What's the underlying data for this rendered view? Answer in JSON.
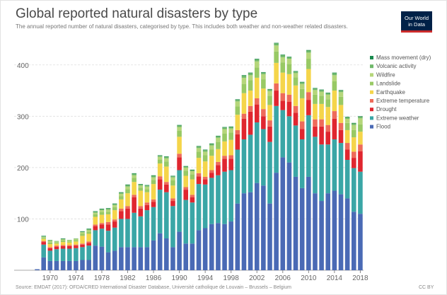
{
  "header": {
    "title": "Global reported natural disasters by type",
    "subtitle": "The annual reported number of natural disasters, categorised by type. This includes both weather and non-weather related disasters.",
    "logo_line1": "Our World",
    "logo_line2": "in Data"
  },
  "footer": {
    "source": "Source: EMDAT (2017): OFDA/CRED International Disaster Database, Université catholique de Louvain – Brussels – Belgium",
    "license": "CC BY"
  },
  "colors": {
    "Flood": "#4a6ab5",
    "Extreme weather": "#3aa6a6",
    "Drought": "#e0262f",
    "Extreme temperature": "#ee6b5a",
    "Earthquake": "#f5d54a",
    "Landslide": "#98c964",
    "Wildfire": "#b5d67a",
    "Volcanic activity": "#6fb86a",
    "Mass movement (dry)": "#1a8a4e"
  },
  "chart_data": {
    "type": "bar",
    "stacked": true,
    "title": "Global reported natural disasters by type",
    "xlabel": "",
    "ylabel": "",
    "ylim": [
      0,
      430
    ],
    "yticks": [
      100,
      200,
      300,
      400
    ],
    "xticks": [
      1970,
      1974,
      1978,
      1982,
      1986,
      1990,
      1994,
      1998,
      2002,
      2006,
      2010,
      2014,
      2018
    ],
    "grid": true,
    "legend_position": "right",
    "categories": [
      1968,
      1969,
      1970,
      1971,
      1972,
      1973,
      1974,
      1975,
      1976,
      1977,
      1978,
      1979,
      1980,
      1981,
      1982,
      1983,
      1984,
      1985,
      1986,
      1987,
      1988,
      1989,
      1990,
      1991,
      1992,
      1993,
      1994,
      1995,
      1996,
      1997,
      1998,
      1999,
      2000,
      2001,
      2002,
      2003,
      2004,
      2005,
      2006,
      2007,
      2008,
      2009,
      2010,
      2011,
      2012,
      2013,
      2014,
      2015,
      2016,
      2017,
      2018
    ],
    "legend": [
      "Mass movement (dry)",
      "Volcanic activity",
      "Wildfire",
      "Landslide",
      "Earthquake",
      "Extreme temperature",
      "Drought",
      "Extreme weather",
      "Flood"
    ],
    "series": [
      {
        "name": "Flood",
        "values": [
          2,
          25,
          18,
          18,
          18,
          18,
          18,
          20,
          20,
          48,
          46,
          35,
          38,
          45,
          45,
          45,
          45,
          45,
          58,
          72,
          62,
          45,
          75,
          52,
          52,
          78,
          82,
          90,
          92,
          90,
          95,
          130,
          150,
          152,
          170,
          165,
          130,
          190,
          220,
          210,
          182,
          160,
          182,
          150,
          135,
          150,
          155,
          148,
          140,
          114,
          110
        ]
      },
      {
        "name": "Extreme weather",
        "values": [
          0,
          25,
          20,
          23,
          24,
          24,
          25,
          25,
          28,
          30,
          35,
          42,
          45,
          55,
          55,
          67,
          60,
          72,
          65,
          85,
          90,
          80,
          120,
          85,
          80,
          90,
          85,
          90,
          93,
          102,
          100,
          105,
          105,
          112,
          118,
          110,
          120,
          130,
          92,
          90,
          100,
          95,
          120,
          110,
          110,
          95,
          100,
          100,
          75,
          85,
          82
        ]
      },
      {
        "name": "Drought",
        "values": [
          0,
          5,
          5,
          5,
          5,
          5,
          5,
          5,
          5,
          8,
          8,
          12,
          12,
          15,
          20,
          30,
          15,
          10,
          10,
          20,
          15,
          10,
          25,
          20,
          10,
          15,
          10,
          10,
          20,
          25,
          22,
          30,
          40,
          45,
          35,
          25,
          30,
          30,
          18,
          28,
          25,
          20,
          30,
          20,
          35,
          25,
          40,
          25,
          20,
          20,
          40
        ]
      },
      {
        "name": "Extreme temperature",
        "values": [
          0,
          2,
          2,
          2,
          2,
          2,
          2,
          2,
          3,
          3,
          3,
          5,
          4,
          5,
          5,
          5,
          5,
          5,
          5,
          6,
          5,
          5,
          7,
          5,
          5,
          6,
          5,
          5,
          6,
          6,
          7,
          8,
          10,
          11,
          12,
          14,
          12,
          14,
          15,
          14,
          13,
          15,
          15,
          14,
          14,
          13,
          15,
          14,
          13,
          12,
          13
        ]
      },
      {
        "name": "Earthquake",
        "values": [
          0,
          4,
          6,
          4,
          6,
          5,
          6,
          15,
          15,
          15,
          16,
          15,
          18,
          18,
          25,
          25,
          30,
          20,
          30,
          25,
          30,
          25,
          33,
          22,
          30,
          30,
          30,
          28,
          25,
          28,
          30,
          30,
          40,
          30,
          40,
          40,
          30,
          40,
          40,
          40,
          40,
          45,
          45,
          30,
          30,
          35,
          40,
          35,
          25,
          28,
          25
        ]
      },
      {
        "name": "Landslide",
        "values": [
          0,
          2,
          3,
          2,
          3,
          2,
          3,
          4,
          4,
          5,
          5,
          5,
          6,
          6,
          8,
          8,
          6,
          6,
          8,
          8,
          10,
          10,
          12,
          10,
          10,
          12,
          12,
          12,
          14,
          15,
          14,
          16,
          18,
          20,
          20,
          18,
          18,
          22,
          20,
          20,
          16,
          18,
          20,
          18,
          16,
          15,
          18,
          16,
          14,
          14,
          14
        ]
      },
      {
        "name": "Wildfire",
        "values": [
          0,
          2,
          3,
          2,
          2,
          2,
          2,
          3,
          3,
          3,
          4,
          4,
          4,
          5,
          5,
          5,
          4,
          5,
          5,
          5,
          6,
          6,
          7,
          6,
          6,
          7,
          7,
          8,
          8,
          9,
          8,
          10,
          12,
          10,
          12,
          10,
          9,
          12,
          10,
          10,
          8,
          10,
          12,
          9,
          8,
          9,
          12,
          9,
          8,
          10,
          12
        ]
      },
      {
        "name": "Volcanic activity",
        "values": [
          0,
          1,
          2,
          1,
          1,
          1,
          1,
          1,
          2,
          2,
          2,
          2,
          2,
          2,
          3,
          3,
          2,
          2,
          3,
          2,
          3,
          2,
          3,
          2,
          2,
          3,
          3,
          3,
          3,
          3,
          3,
          3,
          4,
          4,
          4,
          3,
          3,
          4,
          4,
          3,
          3,
          3,
          4,
          3,
          3,
          3,
          4,
          3,
          3,
          3,
          3
        ]
      },
      {
        "name": "Mass movement (dry)",
        "values": [
          0,
          1,
          0,
          0,
          1,
          0,
          0,
          1,
          1,
          1,
          1,
          1,
          1,
          1,
          1,
          1,
          1,
          1,
          1,
          1,
          1,
          1,
          1,
          1,
          1,
          1,
          1,
          1,
          1,
          1,
          1,
          1,
          1,
          1,
          1,
          1,
          1,
          1,
          1,
          1,
          1,
          1,
          1,
          1,
          1,
          1,
          1,
          1,
          1,
          1,
          1
        ]
      }
    ]
  }
}
